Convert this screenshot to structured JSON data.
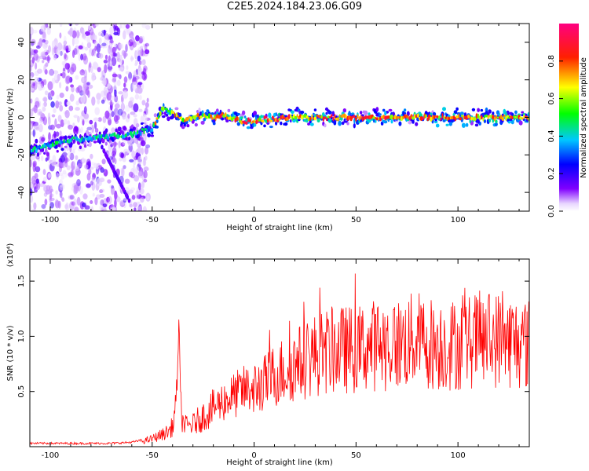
{
  "title": "C2E5.2024.184.23.06.G09",
  "chart_data": [
    {
      "type": "heatmap",
      "xlabel": "Height of straight line (km)",
      "ylabel": "Frequency (Hz)",
      "xlim": [
        -110,
        135
      ],
      "ylim": [
        -50,
        50
      ],
      "x_ticks": [
        -100,
        -50,
        0,
        50,
        100
      ],
      "y_ticks": [
        -40,
        -20,
        0,
        20,
        40
      ],
      "colorbar": {
        "label": "Normalized spectral amplitude",
        "range": [
          0,
          1
        ],
        "ticks": [
          0.0,
          0.2,
          0.4,
          0.6,
          0.8
        ],
        "tick_labels": [
          "0.0",
          "0.2",
          "0.4",
          "0.6",
          "0.8"
        ],
        "colormap": [
          "#ffffff",
          "#7f00ff",
          "#0000ff",
          "#00ffff",
          "#00ff00",
          "#ffff00",
          "#ff0000",
          "#ff00ff"
        ]
      },
      "ridge": {
        "x": [
          -110,
          -100,
          -90,
          -80,
          -70,
          -60,
          -50,
          -45,
          -40,
          -35,
          -30,
          -25,
          -20,
          -15,
          -10,
          -5,
          0,
          5,
          10,
          20,
          30,
          40,
          50,
          60,
          70,
          80,
          90,
          100,
          110,
          120,
          135
        ],
        "frequency": [
          -18,
          -15,
          -12,
          -11,
          -10,
          -9,
          -6,
          5,
          2,
          -2,
          0,
          1,
          0,
          1,
          -1,
          -2,
          -2,
          -1,
          -1,
          0,
          0,
          0,
          0,
          0,
          0,
          0,
          0,
          0,
          0,
          0,
          0
        ]
      },
      "grid": false
    },
    {
      "type": "line",
      "xlabel": "Height of straight line (km)",
      "ylabel": "SNR (10 * v/v)",
      "y_multiplier": "(x10⁴)",
      "xlim": [
        -110,
        135
      ],
      "ylim": [
        0,
        1.7
      ],
      "x_ticks": [
        -100,
        -50,
        0,
        50,
        100
      ],
      "y_ticks": [
        0.5,
        1.0,
        1.5
      ],
      "y_tick_labels": [
        "0.5",
        "1.0",
        "1.5"
      ],
      "color": "#ff0000",
      "series": [
        {
          "x": [
            -110,
            -90,
            -70,
            -60,
            -55,
            -50,
            -45,
            -42,
            -40,
            -38,
            -37,
            -36,
            -35,
            -33,
            -30,
            -25,
            -20,
            -15,
            -10,
            -5,
            0,
            5,
            10,
            20,
            30,
            40,
            50,
            60,
            70,
            80,
            90,
            100,
            110,
            120,
            135
          ],
          "values": [
            0.02,
            0.02,
            0.02,
            0.03,
            0.05,
            0.08,
            0.12,
            0.15,
            0.2,
            0.45,
            1.25,
            0.4,
            0.25,
            0.2,
            0.22,
            0.3,
            0.38,
            0.45,
            0.5,
            0.55,
            0.58,
            0.62,
            0.7,
            0.8,
            0.9,
            0.95,
            0.95,
            1.0,
            1.0,
            1.05,
            1.0,
            1.0,
            1.05,
            1.05,
            1.0
          ]
        }
      ],
      "grid": false
    }
  ]
}
